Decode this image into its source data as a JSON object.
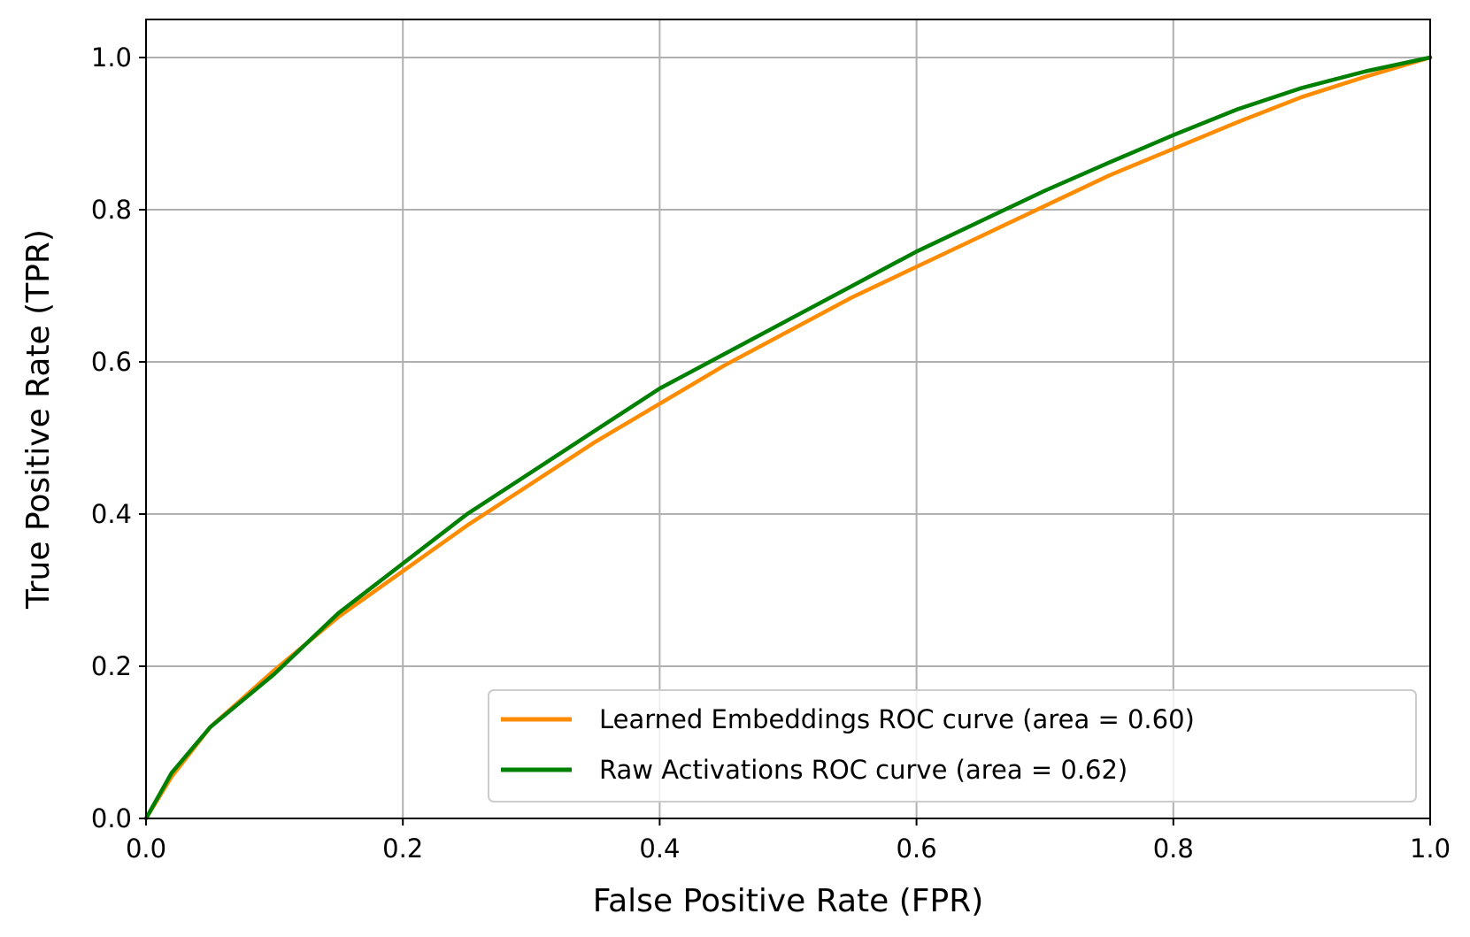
{
  "chart_data": {
    "type": "line",
    "title": "",
    "xlabel": "False Positive Rate (FPR)",
    "ylabel": "True Positive Rate (TPR)",
    "xlim": [
      0.0,
      1.0
    ],
    "ylim": [
      0.0,
      1.05
    ],
    "grid": true,
    "legend_position": "lower-right",
    "xticks": [
      0.0,
      0.2,
      0.4,
      0.6,
      0.8,
      1.0
    ],
    "xtick_labels": [
      "0.0",
      "0.2",
      "0.4",
      "0.6",
      "0.8",
      "1.0"
    ],
    "yticks": [
      0.0,
      0.2,
      0.4,
      0.6,
      0.8,
      1.0
    ],
    "ytick_labels": [
      "0.0",
      "0.2",
      "0.4",
      "0.6",
      "0.8",
      "1.0"
    ],
    "series": [
      {
        "name": "Learned Embeddings ROC curve (area = 0.60)",
        "color": "#ff8c00",
        "x": [
          0.0,
          0.02,
          0.05,
          0.1,
          0.15,
          0.2,
          0.25,
          0.3,
          0.35,
          0.4,
          0.45,
          0.5,
          0.55,
          0.6,
          0.65,
          0.7,
          0.75,
          0.8,
          0.85,
          0.9,
          0.95,
          1.0
        ],
        "y": [
          0.0,
          0.055,
          0.12,
          0.195,
          0.265,
          0.325,
          0.385,
          0.44,
          0.495,
          0.545,
          0.595,
          0.64,
          0.685,
          0.725,
          0.765,
          0.805,
          0.845,
          0.88,
          0.915,
          0.948,
          0.975,
          1.0
        ]
      },
      {
        "name": "Raw Activations ROC curve (area = 0.62)",
        "color": "#008000",
        "x": [
          0.0,
          0.02,
          0.05,
          0.1,
          0.15,
          0.2,
          0.25,
          0.3,
          0.35,
          0.4,
          0.45,
          0.5,
          0.55,
          0.6,
          0.65,
          0.7,
          0.75,
          0.8,
          0.85,
          0.9,
          0.95,
          1.0
        ],
        "y": [
          0.0,
          0.06,
          0.12,
          0.19,
          0.27,
          0.335,
          0.4,
          0.455,
          0.51,
          0.565,
          0.61,
          0.655,
          0.7,
          0.745,
          0.785,
          0.825,
          0.862,
          0.898,
          0.932,
          0.96,
          0.982,
          1.0
        ]
      }
    ]
  }
}
